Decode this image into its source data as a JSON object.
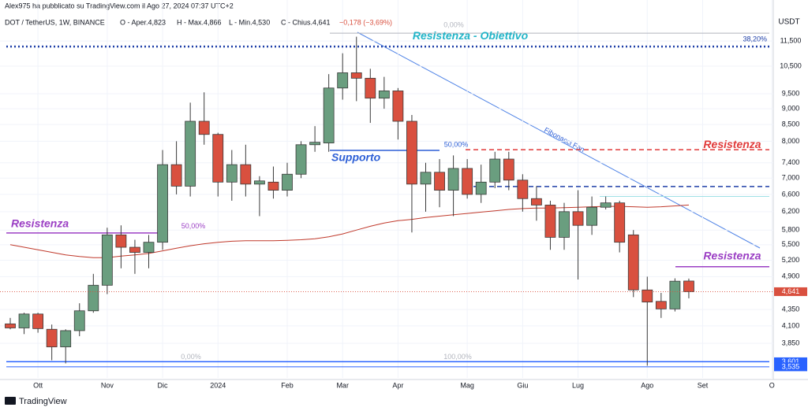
{
  "chart_data": {
    "type": "candlestick",
    "header": "Alex975 ha pubblicato su TradingView.com il Ago 27, 2024 07:37 UTC+2",
    "legend": [
      "DOT / TetherUS, 1W, BINANCE",
      "O - Aper.4,823",
      "H - Max.4,866",
      "L - Min.4,530",
      "C - Chius.4,641",
      "−0,178 (−3,69%)"
    ],
    "currency": "USDT",
    "watermark": "TradingView",
    "categories": [
      null,
      null,
      "Ott",
      null,
      null,
      null,
      null,
      "Nov",
      null,
      null,
      null,
      "Dic",
      null,
      null,
      null,
      "2024",
      null,
      null,
      null,
      null,
      "Feb",
      null,
      null,
      null,
      "Mar",
      null,
      null,
      null,
      "Apr",
      null,
      null,
      null,
      null,
      "Mag",
      null,
      null,
      null,
      "Giu",
      null,
      null,
      null,
      "Lug",
      null,
      null,
      null,
      null,
      "Ago",
      null,
      null,
      null,
      "Set",
      null,
      null,
      null,
      null,
      "O"
    ],
    "open": [
      4.13,
      4.07,
      4.28,
      4.05,
      3.8,
      4.03,
      4.33,
      4.75,
      5.7,
      5.45,
      5.35,
      5.55,
      7.35,
      6.8,
      8.6,
      8.2,
      6.9,
      7.35,
      6.85,
      6.9,
      6.7,
      7.1,
      7.9,
      7.95,
      9.7,
      10.25,
      10.05,
      9.35,
      9.6,
      8.6,
      6.85,
      7.15,
      6.7,
      7.25,
      6.6,
      6.9,
      7.5,
      6.95,
      6.5,
      6.35,
      5.65,
      6.2,
      5.9,
      6.3,
      6.4,
      5.7,
      4.67,
      4.48,
      4.36,
      4.823,
      null,
      null,
      null,
      null,
      null,
      null
    ],
    "high": [
      4.22,
      4.3,
      4.3,
      4.12,
      4.05,
      4.45,
      4.95,
      5.85,
      5.9,
      5.6,
      5.7,
      7.75,
      8.0,
      9.2,
      9.55,
      8.25,
      7.75,
      7.9,
      7.05,
      7.3,
      7.4,
      8.0,
      8.45,
      10.2,
      11.0,
      11.68,
      10.4,
      10.1,
      9.7,
      8.8,
      7.4,
      7.5,
      7.6,
      7.5,
      7.35,
      7.7,
      7.7,
      7.1,
      6.8,
      6.45,
      6.4,
      6.7,
      6.55,
      6.55,
      6.45,
      5.8,
      4.9,
      4.62,
      4.87,
      4.866,
      null,
      null,
      null,
      null,
      null,
      null
    ],
    "low": [
      4.05,
      3.98,
      4.0,
      3.62,
      3.58,
      3.95,
      4.3,
      4.6,
      5.05,
      4.95,
      5.05,
      5.4,
      6.6,
      6.55,
      7.9,
      6.55,
      6.45,
      6.55,
      6.1,
      6.5,
      6.55,
      7.0,
      7.7,
      7.7,
      9.3,
      9.25,
      8.55,
      9.0,
      8.05,
      5.75,
      6.2,
      6.3,
      6.1,
      6.5,
      6.4,
      6.75,
      6.7,
      6.2,
      6.0,
      5.4,
      5.4,
      4.85,
      5.7,
      6.25,
      5.35,
      4.55,
      3.55,
      4.22,
      4.32,
      4.53,
      null,
      null,
      null,
      null,
      null,
      null
    ],
    "close": [
      4.07,
      4.28,
      4.06,
      3.8,
      4.03,
      4.33,
      4.75,
      5.7,
      5.45,
      5.35,
      5.55,
      7.35,
      6.8,
      8.6,
      8.2,
      6.9,
      7.35,
      6.85,
      6.93,
      6.7,
      7.1,
      7.9,
      7.97,
      9.7,
      10.25,
      10.05,
      9.35,
      9.6,
      8.6,
      6.85,
      7.15,
      6.7,
      7.25,
      6.6,
      6.9,
      7.5,
      6.95,
      6.5,
      6.35,
      5.65,
      6.2,
      5.9,
      6.3,
      6.4,
      5.55,
      4.67,
      4.47,
      4.36,
      4.82,
      4.641,
      null,
      null,
      null,
      null,
      null,
      null
    ],
    "up_color": "#6a9e7f",
    "down_color": "#d9503f",
    "moving_average": {
      "color": "#c0392b",
      "values": [
        5.5,
        5.45,
        5.4,
        5.35,
        5.3,
        5.27,
        5.25,
        5.25,
        5.28,
        5.3,
        5.33,
        5.38,
        5.43,
        5.48,
        5.52,
        5.55,
        5.57,
        5.58,
        5.58,
        5.58,
        5.59,
        5.6,
        5.62,
        5.66,
        5.72,
        5.8,
        5.88,
        5.95,
        6.0,
        6.03,
        6.07,
        6.1,
        6.13,
        6.16,
        6.19,
        6.22,
        6.25,
        6.27,
        6.28,
        6.28,
        6.29,
        6.3,
        6.31,
        6.32,
        6.32,
        6.31,
        6.3,
        6.31,
        6.33,
        6.35,
        null,
        null,
        null,
        null,
        null,
        null
      ]
    },
    "ylim": [
      3.396,
      13.34
    ],
    "log_scale": true,
    "grid": true,
    "yticks": [
      {
        "value": 11.5,
        "label": "11,500"
      },
      {
        "value": 10.5,
        "label": "10,500"
      },
      {
        "value": 9.5,
        "label": "9,500"
      },
      {
        "value": 9.0,
        "label": "9,000"
      },
      {
        "value": 8.5,
        "label": "8,500"
      },
      {
        "value": 8.0,
        "label": "8,000"
      },
      {
        "value": 7.4,
        "label": "7,400"
      },
      {
        "value": 7.0,
        "label": "7,000"
      },
      {
        "value": 6.6,
        "label": "6,600"
      },
      {
        "value": 6.2,
        "label": "6,200"
      },
      {
        "value": 5.8,
        "label": "5,800"
      },
      {
        "value": 5.5,
        "label": "5,500"
      },
      {
        "value": 5.2,
        "label": "5,200"
      },
      {
        "value": 4.9,
        "label": "4,900"
      },
      {
        "value": 4.35,
        "label": "4,350"
      },
      {
        "value": 4.1,
        "label": "4,100"
      },
      {
        "value": 3.85,
        "label": "3,850"
      }
    ],
    "price_labels": [
      {
        "value": 4.641,
        "label": "4,641",
        "color": "#d9503f"
      },
      {
        "value": 3.601,
        "label": "3,601",
        "color": "#2962ff"
      },
      {
        "value": 3.535,
        "label": "3,535",
        "color": "#2962ff"
      }
    ],
    "levels": [
      {
        "value": 11.83,
        "color": "#b2b5be",
        "labels": [
          "0,00%",
          "Resistenza - Obiettivo"
        ]
      },
      {
        "value": 11.27,
        "color": "#1e3fa8",
        "labels": [
          "38,20%"
        ]
      },
      {
        "value": 7.76,
        "color": "#e03b3b",
        "labels": [
          "Resistenza"
        ]
      },
      {
        "value": 7.74,
        "color": "#2d5fd6",
        "labels": [
          "Supporto",
          "50,00%"
        ]
      },
      {
        "value": 6.79,
        "color": "#1e3fa8",
        "labels": []
      },
      {
        "value": 6.55,
        "color": "#9fe0e6",
        "labels": []
      },
      {
        "value": 5.74,
        "color": "#9b3fc4",
        "labels": [
          "Resistenza",
          "50,00%"
        ]
      },
      {
        "value": 5.08,
        "color": "#9b3fc4",
        "labels": [
          "Resistenza"
        ]
      },
      {
        "value": 3.601,
        "color": "#2962ff",
        "labels": [
          "0,00%",
          "100,00%"
        ]
      },
      {
        "value": 3.535,
        "color": "#2962ff",
        "labels": []
      }
    ],
    "fan_label": "Fibonacci Fan"
  }
}
